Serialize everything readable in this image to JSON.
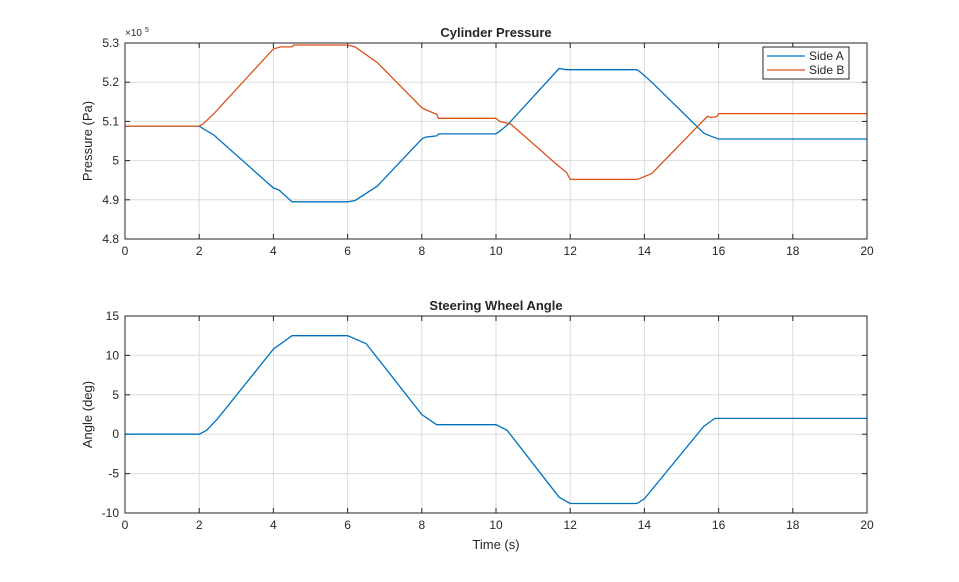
{
  "chart_data": [
    {
      "type": "line",
      "title": "Cylinder Pressure",
      "xlabel": "",
      "ylabel": "Pressure (Pa)",
      "y_exponent_label": "×10",
      "y_exponent": "5",
      "xlim": [
        0,
        20
      ],
      "ylim": [
        4.8,
        5.3
      ],
      "xticks": [
        0,
        2,
        4,
        6,
        8,
        10,
        12,
        14,
        16,
        18,
        20
      ],
      "yticks": [
        4.8,
        4.9,
        5,
        5.1,
        5.2,
        5.3
      ],
      "ytick_labels": [
        "4.8",
        "4.9",
        "5",
        "5.1",
        "5.2",
        "5.3"
      ],
      "grid": true,
      "legend_position": "top-right",
      "series": [
        {
          "name": "Side A",
          "color": "#0072BD",
          "x": [
            0,
            2,
            2.1,
            2.4,
            4,
            4.15,
            4.5,
            6,
            6.2,
            6.8,
            8,
            8.1,
            8.4,
            8.45,
            10,
            10.1,
            10.3,
            11.7,
            11.9,
            12,
            13.8,
            13.9,
            14.2,
            15.6,
            15.8,
            16,
            20
          ],
          "y": [
            5.088,
            5.088,
            5.082,
            5.065,
            4.93,
            4.925,
            4.895,
            4.895,
            4.898,
            4.935,
            5.055,
            5.06,
            5.063,
            5.068,
            5.068,
            5.075,
            5.09,
            5.235,
            5.232,
            5.232,
            5.232,
            5.225,
            5.2,
            5.07,
            5.062,
            5.055,
            5.055
          ]
        },
        {
          "name": "Side B",
          "color": "#D95319",
          "x": [
            0,
            2,
            2.1,
            2.4,
            4,
            4.2,
            4.5,
            4.55,
            6,
            6.2,
            6.8,
            8,
            8.1,
            8.4,
            8.45,
            10,
            10.1,
            10.4,
            11.7,
            11.9,
            12,
            13.8,
            13.9,
            14.2,
            15.7,
            15.8,
            15.95,
            16,
            20
          ],
          "y": [
            5.088,
            5.088,
            5.093,
            5.12,
            5.285,
            5.29,
            5.29,
            5.295,
            5.295,
            5.29,
            5.25,
            5.135,
            5.13,
            5.118,
            5.108,
            5.108,
            5.1,
            5.093,
            4.985,
            4.97,
            4.952,
            4.952,
            4.955,
            4.967,
            5.113,
            5.11,
            5.112,
            5.12,
            5.12
          ]
        }
      ]
    },
    {
      "type": "line",
      "title": "Steering Wheel Angle",
      "xlabel": "Time (s)",
      "ylabel": "Angle (deg)",
      "xlim": [
        0,
        20
      ],
      "ylim": [
        -10,
        15
      ],
      "xticks": [
        0,
        2,
        4,
        6,
        8,
        10,
        12,
        14,
        16,
        18,
        20
      ],
      "yticks": [
        -10,
        -5,
        0,
        5,
        10,
        15
      ],
      "ytick_labels": [
        "-10",
        "-5",
        "0",
        "5",
        "10",
        "15"
      ],
      "grid": true,
      "series": [
        {
          "name": "Steering Wheel Angle",
          "color": "#0072BD",
          "x": [
            0,
            2,
            2.2,
            2.5,
            4,
            4.5,
            6,
            6.5,
            8,
            8.4,
            10,
            10.3,
            11.7,
            12,
            13.8,
            14,
            15.6,
            15.9,
            20
          ],
          "y": [
            0,
            0,
            0.5,
            2,
            10.8,
            12.5,
            12.5,
            11.5,
            2.5,
            1.2,
            1.2,
            0.5,
            -8,
            -8.8,
            -8.8,
            -8.2,
            1,
            2,
            2
          ]
        }
      ]
    }
  ]
}
